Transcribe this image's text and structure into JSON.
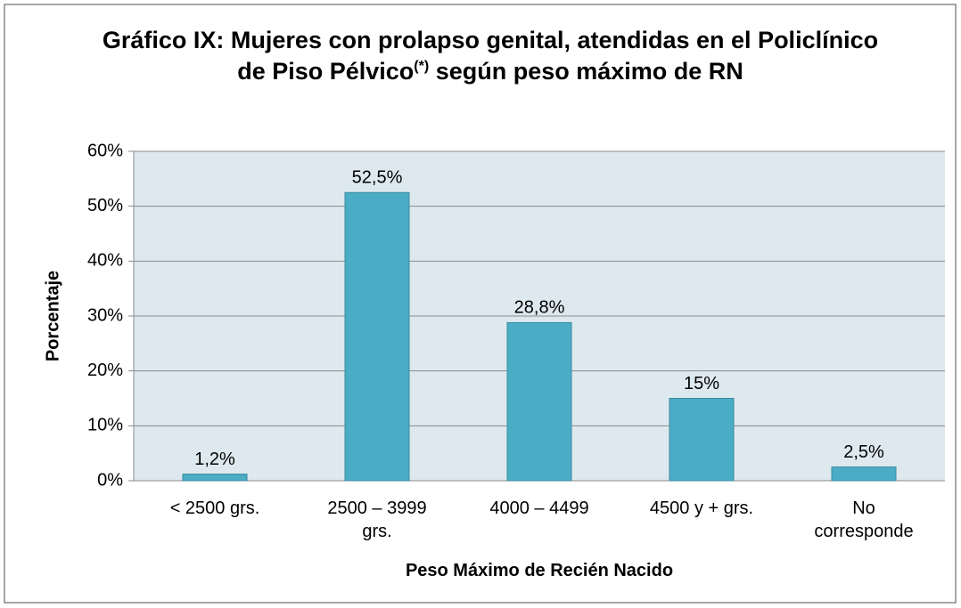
{
  "chart_data": {
    "type": "bar",
    "title": "Gráfico IX: Mujeres con prolapso genital, atendidas en el Policlínico de Piso Pélvico",
    "title_superscript": "(*)",
    "title_rest": "según peso máximo de RN",
    "x_label": "Peso Máximo de Recién Nacido",
    "y_label": "Porcentaje",
    "categories": [
      "< 2500 grs.",
      "2500 – 3999 grs.",
      "4000 – 4499",
      "4500 y + grs.",
      "No corresponde"
    ],
    "values": [
      1.2,
      52.5,
      28.8,
      15,
      2.5
    ],
    "value_labels": [
      "1,2%",
      "52,5%",
      "28,8%",
      "15%",
      "2,5%"
    ],
    "color": "#4bacc6",
    "ylim": [
      0,
      60
    ],
    "yticks": [
      {
        "value": 0,
        "label": "0%"
      },
      {
        "value": 10,
        "label": "10%"
      },
      {
        "value": 20,
        "label": "20%"
      },
      {
        "value": 30,
        "label": "30%"
      },
      {
        "value": 40,
        "label": "40%"
      },
      {
        "value": 50,
        "label": "50%"
      },
      {
        "value": 60,
        "label": "60%"
      }
    ],
    "grid": true
  }
}
